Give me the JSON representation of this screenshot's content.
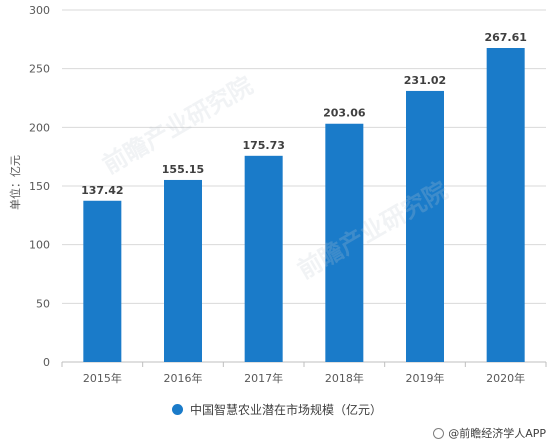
{
  "chart_data": {
    "type": "bar",
    "categories": [
      "2015年",
      "2016年",
      "2017年",
      "2018年",
      "2019年",
      "2020年"
    ],
    "values": [
      137.42,
      155.15,
      175.73,
      203.06,
      231.02,
      267.61
    ],
    "data_labels": [
      "137.42",
      "155.15",
      "175.73",
      "203.06",
      "231.02",
      "267.61"
    ],
    "ylabel": "单位：亿元",
    "ylim": [
      0,
      300
    ],
    "yticks": [
      0,
      50,
      100,
      150,
      200,
      250,
      300
    ],
    "grid": true,
    "legend": "bottom",
    "series": [
      {
        "name": "中国智慧农业潜在市场规模（亿元）",
        "color": "#1a7bc9"
      }
    ]
  },
  "credit": "@前瞻经济学人APP",
  "watermark": "前瞻产业研究院"
}
